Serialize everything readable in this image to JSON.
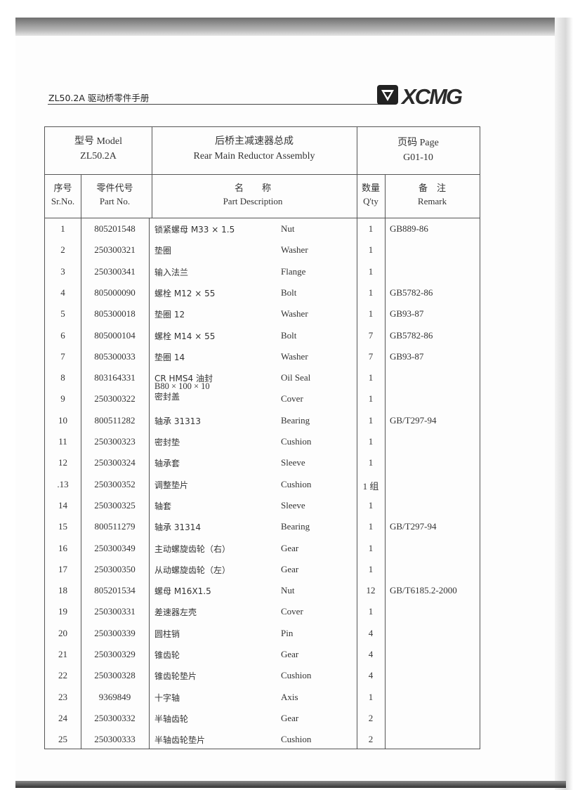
{
  "header": {
    "title": "ZL50.2A 驱动桥零件手册",
    "logo_text": "XCMG"
  },
  "title_block": {
    "model_label": "型号 Model",
    "model_value": "ZL50.2A",
    "assembly_cn": "后桥主减速器总成",
    "assembly_en": "Rear Main Reductor Assembly",
    "page_label": "页码 Page",
    "page_value": "G01-10"
  },
  "columns": {
    "sr_cn": "序号",
    "sr_en": "Sr.No.",
    "part_cn": "零件代号",
    "part_en": "Part No.",
    "desc_cn": "名　　称",
    "desc_en": "Part Description",
    "qty_cn": "数量",
    "qty_en": "Q'ty",
    "remark_cn": "备　注",
    "remark_en": "Remark"
  },
  "rows": [
    {
      "sr": "1",
      "part": "805201548",
      "cn": "锁紧螺母 M33 × 1.5",
      "en": "Nut",
      "qty": "1",
      "remark": "GB889-86"
    },
    {
      "sr": "2",
      "part": "250300321",
      "cn": "垫圈",
      "en": "Washer",
      "qty": "1",
      "remark": ""
    },
    {
      "sr": "3",
      "part": "250300341",
      "cn": "输入法兰",
      "en": "Flange",
      "qty": "1",
      "remark": ""
    },
    {
      "sr": "4",
      "part": "805000090",
      "cn": "螺栓 M12 × 55",
      "en": "Bolt",
      "qty": "1",
      "remark": "GB5782-86"
    },
    {
      "sr": "5",
      "part": "805300018",
      "cn": "垫圈 12",
      "en": "Washer",
      "qty": "1",
      "remark": "GB93-87"
    },
    {
      "sr": "6",
      "part": "805000104",
      "cn": "螺栓 M14 × 55",
      "en": "Bolt",
      "qty": "7",
      "remark": "GB5782-86"
    },
    {
      "sr": "7",
      "part": "805300033",
      "cn": "垫圈 14",
      "en": "Washer",
      "qty": "7",
      "remark": "GB93-87"
    },
    {
      "sr": "8",
      "part": "803164331",
      "cn": "CR HMS4 油封",
      "cn2": "B80 × 100 × 10",
      "en": "Oil Seal",
      "qty": "1",
      "remark": ""
    },
    {
      "sr": "9",
      "part": "250300322",
      "cn": "密封盖",
      "en": "Cover",
      "qty": "1",
      "remark": ""
    },
    {
      "sr": "10",
      "part": "800511282",
      "cn": "轴承 31313",
      "en": "Bearing",
      "qty": "1",
      "remark": "GB/T297-94"
    },
    {
      "sr": "11",
      "part": "250300323",
      "cn": "密封垫",
      "en": "Cushion",
      "qty": "1",
      "remark": ""
    },
    {
      "sr": "12",
      "part": "250300324",
      "cn": "轴承套",
      "en": "Sleeve",
      "qty": "1",
      "remark": ""
    },
    {
      "sr": ".13",
      "part": "250300352",
      "cn": "调整垫片",
      "en": "Cushion",
      "qty": "1 组",
      "remark": ""
    },
    {
      "sr": "14",
      "part": "250300325",
      "cn": "轴套",
      "en": "Sleeve",
      "qty": "1",
      "remark": ""
    },
    {
      "sr": "15",
      "part": "800511279",
      "cn": "轴承 31314",
      "en": "Bearing",
      "qty": "1",
      "remark": "GB/T297-94"
    },
    {
      "sr": "16",
      "part": "250300349",
      "cn": "主动螺旋齿轮（右）",
      "en": "Gear",
      "qty": "1",
      "remark": ""
    },
    {
      "sr": "17",
      "part": "250300350",
      "cn": "从动螺旋齿轮（左）",
      "en": "Gear",
      "qty": "1",
      "remark": ""
    },
    {
      "sr": "18",
      "part": "805201534",
      "cn": "螺母 M16X1.5",
      "en": "Nut",
      "qty": "12",
      "remark": "GB/T6185.2-2000"
    },
    {
      "sr": "19",
      "part": "250300331",
      "cn": "差速器左壳",
      "en": "Cover",
      "qty": "1",
      "remark": ""
    },
    {
      "sr": "20",
      "part": "250300339",
      "cn": "圆柱销",
      "en": "Pin",
      "qty": "4",
      "remark": ""
    },
    {
      "sr": "21",
      "part": "250300329",
      "cn": "锥齿轮",
      "en": "Gear",
      "qty": "4",
      "remark": ""
    },
    {
      "sr": "22",
      "part": "250300328",
      "cn": "锥齿轮垫片",
      "en": "Cushion",
      "qty": "4",
      "remark": ""
    },
    {
      "sr": "23",
      "part": "9369849",
      "cn": "十字轴",
      "en": "Axis",
      "qty": "1",
      "remark": ""
    },
    {
      "sr": "24",
      "part": "250300332",
      "cn": "半轴齿轮",
      "en": "Gear",
      "qty": "2",
      "remark": ""
    },
    {
      "sr": "25",
      "part": "250300333",
      "cn": "半轴齿轮垫片",
      "en": "Cushion",
      "qty": "2",
      "remark": ""
    }
  ]
}
